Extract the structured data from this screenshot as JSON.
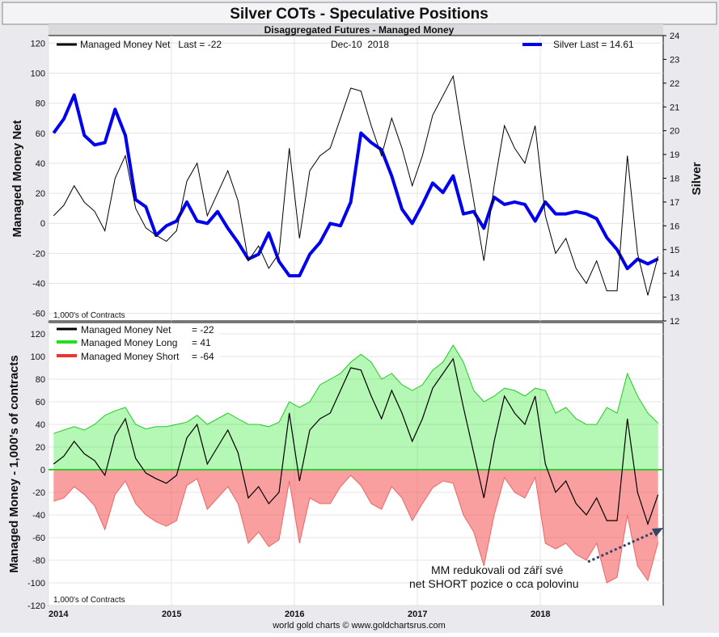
{
  "header": {
    "title": "Silver COTs - Speculative Positions",
    "subtitle": "Disaggregated Futures - Managed Money"
  },
  "footer": {
    "credit": "world gold charts © www.goldchartsrus.com"
  },
  "x_axis": {
    "year_labels": [
      "2014",
      "2015",
      "2016",
      "2017",
      "2018"
    ]
  },
  "top_panel": {
    "legend_mm": "Managed Money Net   Last = -22",
    "date_label": "Dec-10  2018",
    "legend_silver": "Silver Last = 14.61",
    "units_note": "1,000's of Contracts",
    "ylabel_left": "Managed Money Net",
    "ylabel_right": "Silver",
    "left_ticks": [
      "120",
      "100",
      "80",
      "60",
      "40",
      "20",
      "0",
      "-20",
      "-40",
      "-60"
    ],
    "right_ticks": [
      "24",
      "23",
      "22",
      "21",
      "20",
      "19",
      "18",
      "17",
      "16",
      "15",
      "14",
      "13",
      "12"
    ]
  },
  "bottom_panel": {
    "legend": [
      {
        "label": "Managed Money Net",
        "value": "= -22",
        "color": "#000000"
      },
      {
        "label": "Managed Money Long",
        "value": "= 41",
        "color": "#22dd22"
      },
      {
        "label": "Managed Money Short",
        "value": "= -64",
        "color": "#ee3333"
      }
    ],
    "units_note": "1,000's of Contracts",
    "ylabel": "Managed Money - 1,000's of contracts",
    "ticks": [
      "120",
      "100",
      "80",
      "60",
      "40",
      "20",
      "0",
      "-20",
      "-40",
      "-60",
      "-80",
      "-100",
      "-120"
    ],
    "annotation_lines": [
      "MM redukovali od září své",
      "net SHORT pozice o cca polovinu"
    ]
  },
  "chart_data": [
    {
      "type": "line",
      "title": "Silver COTs - Speculative Positions",
      "subtitle": "Disaggregated Futures - Managed Money",
      "x": [
        "2014-01",
        "2014-02",
        "2014-03",
        "2014-04",
        "2014-05",
        "2014-06",
        "2014-07",
        "2014-08",
        "2014-09",
        "2014-10",
        "2014-11",
        "2014-12",
        "2015-01",
        "2015-02",
        "2015-03",
        "2015-04",
        "2015-05",
        "2015-06",
        "2015-07",
        "2015-08",
        "2015-09",
        "2015-10",
        "2015-11",
        "2015-12",
        "2016-01",
        "2016-02",
        "2016-03",
        "2016-04",
        "2016-05",
        "2016-06",
        "2016-07",
        "2016-08",
        "2016-09",
        "2016-10",
        "2016-11",
        "2016-12",
        "2017-01",
        "2017-02",
        "2017-03",
        "2017-04",
        "2017-05",
        "2017-06",
        "2017-07",
        "2017-08",
        "2017-09",
        "2017-10",
        "2017-11",
        "2017-12",
        "2018-01",
        "2018-02",
        "2018-03",
        "2018-04",
        "2018-05",
        "2018-06",
        "2018-07",
        "2018-08",
        "2018-09",
        "2018-10",
        "2018-11",
        "2018-12"
      ],
      "series": [
        {
          "name": "Managed Money Net",
          "axis": "left",
          "values": [
            5,
            12,
            25,
            14,
            8,
            -5,
            30,
            45,
            10,
            -3,
            -8,
            -12,
            -5,
            28,
            40,
            5,
            20,
            35,
            15,
            -25,
            -15,
            -30,
            -20,
            50,
            -10,
            35,
            45,
            50,
            70,
            90,
            88,
            65,
            45,
            70,
            50,
            25,
            45,
            72,
            85,
            98,
            55,
            15,
            -25,
            25,
            65,
            50,
            40,
            65,
            5,
            -20,
            -10,
            -30,
            -40,
            -25,
            -45,
            -45,
            45,
            -20,
            -48,
            -22
          ]
        },
        {
          "name": "Silver",
          "axis": "right",
          "values": [
            19.9,
            20.5,
            21.5,
            19.8,
            19.4,
            19.5,
            20.9,
            19.8,
            17.1,
            16.8,
            15.6,
            16.0,
            16.2,
            17.0,
            16.2,
            16.1,
            16.6,
            15.9,
            15.3,
            14.6,
            14.8,
            15.7,
            14.5,
            13.9,
            13.9,
            14.8,
            15.3,
            16.1,
            16.0,
            17.0,
            19.9,
            19.5,
            19.2,
            18.1,
            16.7,
            16.1,
            16.9,
            17.8,
            17.4,
            18.1,
            16.5,
            16.6,
            15.9,
            17.2,
            16.9,
            17.0,
            16.9,
            16.2,
            17.0,
            16.5,
            16.5,
            16.6,
            16.5,
            16.3,
            15.5,
            15.0,
            14.2,
            14.6,
            14.4,
            14.61
          ]
        }
      ],
      "ylabel": "Managed Money Net",
      "y2label": "Silver",
      "ylim": [
        -65,
        125
      ],
      "y2lim": [
        12,
        24
      ],
      "xlim": [
        "2014-01",
        "2018-12"
      ],
      "legend_position": "top",
      "grid": true
    },
    {
      "type": "area",
      "x": [
        "2014-01",
        "2014-02",
        "2014-03",
        "2014-04",
        "2014-05",
        "2014-06",
        "2014-07",
        "2014-08",
        "2014-09",
        "2014-10",
        "2014-11",
        "2014-12",
        "2015-01",
        "2015-02",
        "2015-03",
        "2015-04",
        "2015-05",
        "2015-06",
        "2015-07",
        "2015-08",
        "2015-09",
        "2015-10",
        "2015-11",
        "2015-12",
        "2016-01",
        "2016-02",
        "2016-03",
        "2016-04",
        "2016-05",
        "2016-06",
        "2016-07",
        "2016-08",
        "2016-09",
        "2016-10",
        "2016-11",
        "2016-12",
        "2017-01",
        "2017-02",
        "2017-03",
        "2017-04",
        "2017-05",
        "2017-06",
        "2017-07",
        "2017-08",
        "2017-09",
        "2017-10",
        "2017-11",
        "2017-12",
        "2018-01",
        "2018-02",
        "2018-03",
        "2018-04",
        "2018-05",
        "2018-06",
        "2018-07",
        "2018-08",
        "2018-09",
        "2018-10",
        "2018-11",
        "2018-12"
      ],
      "series": [
        {
          "name": "Managed Money Net",
          "values": [
            5,
            12,
            25,
            14,
            8,
            -5,
            30,
            45,
            10,
            -3,
            -8,
            -12,
            -5,
            28,
            40,
            5,
            20,
            35,
            15,
            -25,
            -15,
            -30,
            -20,
            50,
            -10,
            35,
            45,
            50,
            70,
            90,
            88,
            65,
            45,
            70,
            50,
            25,
            45,
            72,
            85,
            98,
            55,
            15,
            -25,
            25,
            65,
            50,
            40,
            65,
            5,
            -20,
            -10,
            -30,
            -40,
            -25,
            -45,
            -45,
            45,
            -20,
            -48,
            -22
          ]
        },
        {
          "name": "Managed Money Long",
          "values": [
            32,
            35,
            38,
            35,
            40,
            48,
            52,
            55,
            40,
            36,
            38,
            38,
            40,
            42,
            48,
            40,
            45,
            50,
            45,
            40,
            40,
            38,
            42,
            60,
            55,
            60,
            75,
            80,
            85,
            95,
            102,
            95,
            80,
            85,
            75,
            70,
            75,
            88,
            95,
            110,
            95,
            70,
            60,
            65,
            72,
            70,
            65,
            72,
            70,
            50,
            55,
            45,
            40,
            40,
            55,
            50,
            85,
            65,
            50,
            41
          ]
        },
        {
          "name": "Managed Money Short",
          "values": [
            -28,
            -25,
            -15,
            -22,
            -32,
            -53,
            -22,
            -10,
            -30,
            -40,
            -46,
            -50,
            -45,
            -14,
            -8,
            -35,
            -25,
            -15,
            -30,
            -65,
            -55,
            -68,
            -62,
            -10,
            -65,
            -25,
            -30,
            -30,
            -15,
            -5,
            -14,
            -30,
            -35,
            -15,
            -25,
            -45,
            -30,
            -16,
            -10,
            -12,
            -40,
            -55,
            -85,
            -40,
            -7,
            -20,
            -25,
            -7,
            -65,
            -70,
            -65,
            -75,
            -80,
            -65,
            -100,
            -95,
            -40,
            -85,
            -98,
            -64
          ]
        }
      ],
      "ylabel": "Managed Money - 1,000's of contracts",
      "ylim": [
        -120,
        130
      ],
      "xlim": [
        "2014-01",
        "2018-12"
      ],
      "annotations": [
        "MM redukovali od září své",
        "net SHORT pozice o cca polovinu"
      ],
      "legend_position": "top-left",
      "grid": true
    }
  ]
}
